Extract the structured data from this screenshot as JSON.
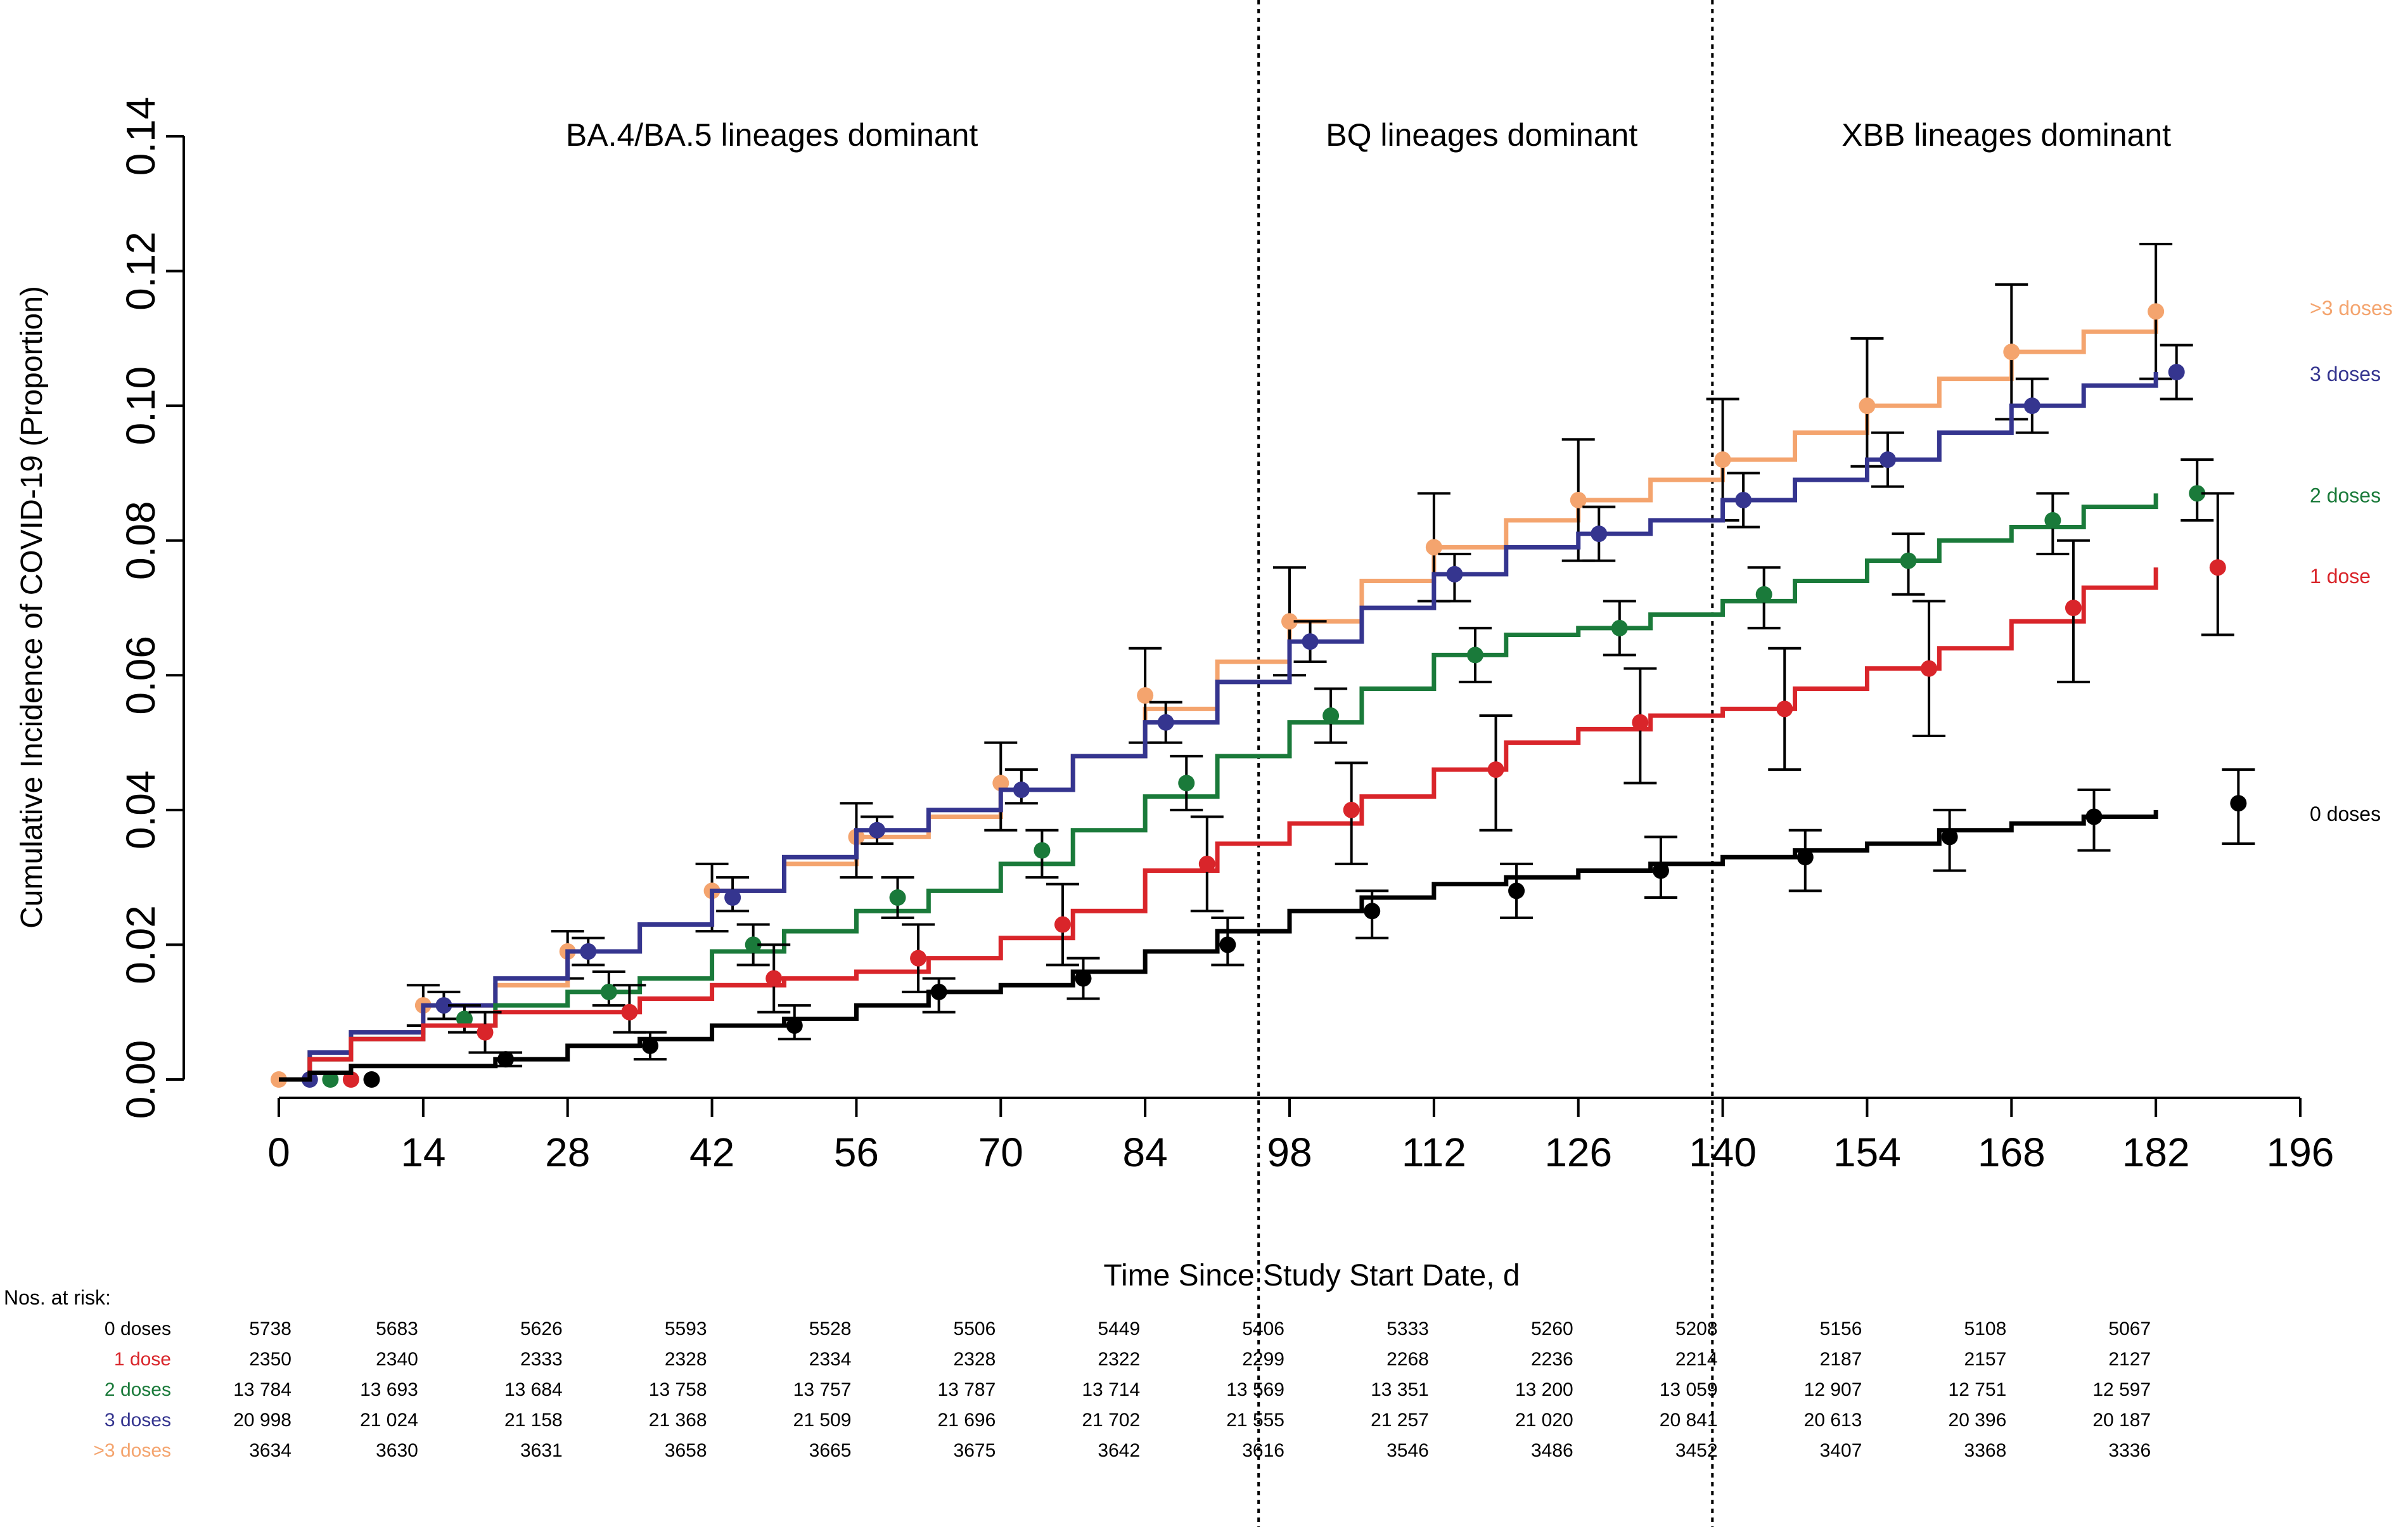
{
  "chart_data": {
    "type": "line",
    "xlabel": "Time Since Study Start Date, d",
    "ylabel": "Cumulative Incidence of COVID-19 (Proportion)",
    "xlim": [
      0,
      196
    ],
    "ylim": [
      0,
      0.14
    ],
    "x_ticks": [
      0,
      14,
      28,
      42,
      56,
      70,
      84,
      98,
      112,
      126,
      140,
      154,
      168,
      182,
      196
    ],
    "y_ticks": [
      "0.00",
      "0.02",
      "0.04",
      "0.06",
      "0.08",
      "0.10",
      "0.12",
      "0.14"
    ],
    "grid": false,
    "legend": "labels at right end of lines",
    "phases": [
      {
        "label": "BA.4/BA.5 lineages dominant",
        "x_start": 0,
        "x_end": 95
      },
      {
        "label": "BQ lineages dominant",
        "x_start": 95,
        "x_end": 139
      },
      {
        "label": "XBB lineages dominant",
        "x_start": 139,
        "x_end": 196
      }
    ],
    "phase_boundaries": [
      95,
      139
    ],
    "series": [
      {
        "name": ">3 doses",
        "color": "#F4A46E",
        "x": [
          0,
          3,
          7,
          14,
          21,
          28,
          35,
          42,
          49,
          56,
          63,
          70,
          77,
          84,
          91,
          98,
          105,
          112,
          119,
          126,
          133,
          140,
          147,
          154,
          161,
          168,
          175,
          182
        ],
        "y": [
          0,
          0.004,
          0.007,
          0.011,
          0.014,
          0.019,
          0.023,
          0.028,
          0.032,
          0.036,
          0.039,
          0.043,
          0.048,
          0.055,
          0.062,
          0.068,
          0.074,
          0.079,
          0.083,
          0.086,
          0.089,
          0.092,
          0.096,
          0.1,
          0.104,
          0.108,
          0.111,
          0.114
        ],
        "markers": [
          {
            "x": 0,
            "y": 0,
            "lo": 0,
            "hi": 0
          },
          {
            "x": 14,
            "y": 0.011,
            "lo": 0.008,
            "hi": 0.014
          },
          {
            "x": 28,
            "y": 0.019,
            "lo": 0.015,
            "hi": 0.022
          },
          {
            "x": 42,
            "y": 0.028,
            "lo": 0.022,
            "hi": 0.032
          },
          {
            "x": 56,
            "y": 0.036,
            "lo": 0.03,
            "hi": 0.041
          },
          {
            "x": 70,
            "y": 0.044,
            "lo": 0.037,
            "hi": 0.05
          },
          {
            "x": 84,
            "y": 0.057,
            "lo": 0.05,
            "hi": 0.064
          },
          {
            "x": 98,
            "y": 0.068,
            "lo": 0.06,
            "hi": 0.076
          },
          {
            "x": 112,
            "y": 0.079,
            "lo": 0.071,
            "hi": 0.087
          },
          {
            "x": 126,
            "y": 0.086,
            "lo": 0.077,
            "hi": 0.095
          },
          {
            "x": 140,
            "y": 0.092,
            "lo": 0.083,
            "hi": 0.101
          },
          {
            "x": 154,
            "y": 0.1,
            "lo": 0.091,
            "hi": 0.11
          },
          {
            "x": 168,
            "y": 0.108,
            "lo": 0.098,
            "hi": 0.118
          },
          {
            "x": 182,
            "y": 0.114,
            "lo": 0.104,
            "hi": 0.124
          }
        ]
      },
      {
        "name": "3 doses",
        "color": "#35358F",
        "x": [
          0,
          3,
          7,
          14,
          21,
          28,
          35,
          42,
          49,
          56,
          63,
          70,
          77,
          84,
          91,
          98,
          105,
          112,
          119,
          126,
          133,
          140,
          147,
          154,
          161,
          168,
          175,
          182
        ],
        "y": [
          0,
          0.004,
          0.007,
          0.011,
          0.015,
          0.019,
          0.023,
          0.028,
          0.033,
          0.037,
          0.04,
          0.043,
          0.048,
          0.053,
          0.059,
          0.065,
          0.07,
          0.075,
          0.079,
          0.081,
          0.083,
          0.086,
          0.089,
          0.092,
          0.096,
          0.1,
          0.103,
          0.105
        ],
        "markers": [
          {
            "x": 3,
            "y": 0,
            "lo": 0,
            "hi": 0
          },
          {
            "x": 16,
            "y": 0.011,
            "lo": 0.009,
            "hi": 0.013
          },
          {
            "x": 30,
            "y": 0.019,
            "lo": 0.017,
            "hi": 0.021
          },
          {
            "x": 44,
            "y": 0.027,
            "lo": 0.025,
            "hi": 0.03
          },
          {
            "x": 58,
            "y": 0.037,
            "lo": 0.035,
            "hi": 0.039
          },
          {
            "x": 72,
            "y": 0.043,
            "lo": 0.041,
            "hi": 0.046
          },
          {
            "x": 86,
            "y": 0.053,
            "lo": 0.05,
            "hi": 0.056
          },
          {
            "x": 100,
            "y": 0.065,
            "lo": 0.062,
            "hi": 0.068
          },
          {
            "x": 114,
            "y": 0.075,
            "lo": 0.071,
            "hi": 0.078
          },
          {
            "x": 128,
            "y": 0.081,
            "lo": 0.077,
            "hi": 0.085
          },
          {
            "x": 142,
            "y": 0.086,
            "lo": 0.082,
            "hi": 0.09
          },
          {
            "x": 156,
            "y": 0.092,
            "lo": 0.088,
            "hi": 0.096
          },
          {
            "x": 170,
            "y": 0.1,
            "lo": 0.096,
            "hi": 0.104
          },
          {
            "x": 184,
            "y": 0.105,
            "lo": 0.101,
            "hi": 0.109
          }
        ]
      },
      {
        "name": "2 doses",
        "color": "#1A7A3A",
        "x": [
          0,
          3,
          7,
          14,
          21,
          28,
          35,
          42,
          49,
          56,
          63,
          70,
          77,
          84,
          91,
          98,
          105,
          112,
          119,
          126,
          133,
          140,
          147,
          154,
          161,
          168,
          175,
          182
        ],
        "y": [
          0,
          0.003,
          0.006,
          0.008,
          0.011,
          0.013,
          0.015,
          0.019,
          0.022,
          0.025,
          0.028,
          0.032,
          0.037,
          0.042,
          0.048,
          0.053,
          0.058,
          0.063,
          0.066,
          0.067,
          0.069,
          0.071,
          0.074,
          0.077,
          0.08,
          0.082,
          0.085,
          0.087
        ],
        "markers": [
          {
            "x": 5,
            "y": 0,
            "lo": 0,
            "hi": 0
          },
          {
            "x": 18,
            "y": 0.009,
            "lo": 0.007,
            "hi": 0.011
          },
          {
            "x": 32,
            "y": 0.013,
            "lo": 0.011,
            "hi": 0.016
          },
          {
            "x": 46,
            "y": 0.02,
            "lo": 0.017,
            "hi": 0.023
          },
          {
            "x": 60,
            "y": 0.027,
            "lo": 0.024,
            "hi": 0.03
          },
          {
            "x": 74,
            "y": 0.034,
            "lo": 0.03,
            "hi": 0.037
          },
          {
            "x": 88,
            "y": 0.044,
            "lo": 0.04,
            "hi": 0.048
          },
          {
            "x": 102,
            "y": 0.054,
            "lo": 0.05,
            "hi": 0.058
          },
          {
            "x": 116,
            "y": 0.063,
            "lo": 0.059,
            "hi": 0.067
          },
          {
            "x": 130,
            "y": 0.067,
            "lo": 0.063,
            "hi": 0.071
          },
          {
            "x": 144,
            "y": 0.072,
            "lo": 0.067,
            "hi": 0.076
          },
          {
            "x": 158,
            "y": 0.077,
            "lo": 0.072,
            "hi": 0.081
          },
          {
            "x": 172,
            "y": 0.083,
            "lo": 0.078,
            "hi": 0.087
          },
          {
            "x": 186,
            "y": 0.087,
            "lo": 0.083,
            "hi": 0.092
          }
        ]
      },
      {
        "name": "1 dose",
        "color": "#D9252A",
        "x": [
          0,
          3,
          7,
          14,
          21,
          28,
          35,
          42,
          49,
          56,
          63,
          70,
          77,
          84,
          91,
          98,
          105,
          112,
          119,
          126,
          133,
          140,
          147,
          154,
          161,
          168,
          175,
          182
        ],
        "y": [
          0,
          0.003,
          0.006,
          0.008,
          0.01,
          0.01,
          0.012,
          0.014,
          0.015,
          0.016,
          0.018,
          0.021,
          0.025,
          0.031,
          0.035,
          0.038,
          0.042,
          0.046,
          0.05,
          0.052,
          0.054,
          0.055,
          0.058,
          0.061,
          0.064,
          0.068,
          0.073,
          0.076
        ],
        "markers": [
          {
            "x": 7,
            "y": 0,
            "lo": 0,
            "hi": 0
          },
          {
            "x": 20,
            "y": 0.007,
            "lo": 0.004,
            "hi": 0.01
          },
          {
            "x": 34,
            "y": 0.01,
            "lo": 0.007,
            "hi": 0.014
          },
          {
            "x": 48,
            "y": 0.015,
            "lo": 0.01,
            "hi": 0.02
          },
          {
            "x": 62,
            "y": 0.018,
            "lo": 0.013,
            "hi": 0.023
          },
          {
            "x": 76,
            "y": 0.023,
            "lo": 0.017,
            "hi": 0.029
          },
          {
            "x": 90,
            "y": 0.032,
            "lo": 0.025,
            "hi": 0.039
          },
          {
            "x": 104,
            "y": 0.04,
            "lo": 0.032,
            "hi": 0.047
          },
          {
            "x": 118,
            "y": 0.046,
            "lo": 0.037,
            "hi": 0.054
          },
          {
            "x": 132,
            "y": 0.053,
            "lo": 0.044,
            "hi": 0.061
          },
          {
            "x": 146,
            "y": 0.055,
            "lo": 0.046,
            "hi": 0.064
          },
          {
            "x": 160,
            "y": 0.061,
            "lo": 0.051,
            "hi": 0.071
          },
          {
            "x": 174,
            "y": 0.07,
            "lo": 0.059,
            "hi": 0.08
          },
          {
            "x": 188,
            "y": 0.076,
            "lo": 0.066,
            "hi": 0.087
          }
        ]
      },
      {
        "name": "0 doses",
        "color": "#000000",
        "x": [
          0,
          3,
          7,
          14,
          21,
          28,
          35,
          42,
          49,
          56,
          63,
          70,
          77,
          84,
          91,
          98,
          105,
          112,
          119,
          126,
          133,
          140,
          147,
          154,
          161,
          168,
          175,
          182
        ],
        "y": [
          0,
          0.001,
          0.002,
          0.002,
          0.003,
          0.005,
          0.006,
          0.008,
          0.009,
          0.011,
          0.013,
          0.014,
          0.016,
          0.019,
          0.022,
          0.025,
          0.027,
          0.029,
          0.03,
          0.031,
          0.032,
          0.033,
          0.034,
          0.035,
          0.037,
          0.038,
          0.039,
          0.04
        ],
        "markers": [
          {
            "x": 9,
            "y": 0,
            "lo": 0,
            "hi": 0
          },
          {
            "x": 22,
            "y": 0.003,
            "lo": 0.002,
            "hi": 0.004
          },
          {
            "x": 36,
            "y": 0.005,
            "lo": 0.003,
            "hi": 0.007
          },
          {
            "x": 50,
            "y": 0.008,
            "lo": 0.006,
            "hi": 0.011
          },
          {
            "x": 64,
            "y": 0.013,
            "lo": 0.01,
            "hi": 0.015
          },
          {
            "x": 78,
            "y": 0.015,
            "lo": 0.012,
            "hi": 0.018
          },
          {
            "x": 92,
            "y": 0.02,
            "lo": 0.017,
            "hi": 0.024
          },
          {
            "x": 106,
            "y": 0.025,
            "lo": 0.021,
            "hi": 0.028
          },
          {
            "x": 120,
            "y": 0.028,
            "lo": 0.024,
            "hi": 0.032
          },
          {
            "x": 134,
            "y": 0.031,
            "lo": 0.027,
            "hi": 0.036
          },
          {
            "x": 148,
            "y": 0.033,
            "lo": 0.028,
            "hi": 0.037
          },
          {
            "x": 162,
            "y": 0.036,
            "lo": 0.031,
            "hi": 0.04
          },
          {
            "x": 176,
            "y": 0.039,
            "lo": 0.034,
            "hi": 0.043
          },
          {
            "x": 190,
            "y": 0.041,
            "lo": 0.035,
            "hi": 0.046
          }
        ]
      }
    ],
    "at_risk": {
      "title": "Nos. at risk:",
      "times": [
        0,
        14,
        28,
        42,
        56,
        70,
        84,
        98,
        112,
        126,
        140,
        154,
        168,
        182
      ],
      "rows": [
        {
          "label": "0 doses",
          "color": "#000000",
          "values": [
            "5738",
            "5683",
            "5626",
            "5593",
            "5528",
            "5506",
            "5449",
            "5406",
            "5333",
            "5260",
            "5208",
            "5156",
            "5108",
            "5067"
          ]
        },
        {
          "label": "1 dose",
          "color": "#D9252A",
          "values": [
            "2350",
            "2340",
            "2333",
            "2328",
            "2334",
            "2328",
            "2322",
            "2299",
            "2268",
            "2236",
            "2214",
            "2187",
            "2157",
            "2127"
          ]
        },
        {
          "label": "2 doses",
          "color": "#1A7A3A",
          "values": [
            "13 784",
            "13 693",
            "13 684",
            "13 758",
            "13 757",
            "13 787",
            "13 714",
            "13 569",
            "13 351",
            "13 200",
            "13 059",
            "12 907",
            "12 751",
            "12 597"
          ]
        },
        {
          "label": "3 doses",
          "color": "#35358F",
          "values": [
            "20 998",
            "21 024",
            "21 158",
            "21 368",
            "21 509",
            "21 696",
            "21 702",
            "21 555",
            "21 257",
            "21 020",
            "20 841",
            "20 613",
            "20 396",
            "20 187"
          ]
        },
        {
          "label": ">3 doses",
          "color": "#F4A46E",
          "values": [
            "3634",
            "3630",
            "3631",
            "3658",
            "3665",
            "3675",
            "3642",
            "3616",
            "3546",
            "3486",
            "3452",
            "3407",
            "3368",
            "3336"
          ]
        }
      ]
    }
  }
}
